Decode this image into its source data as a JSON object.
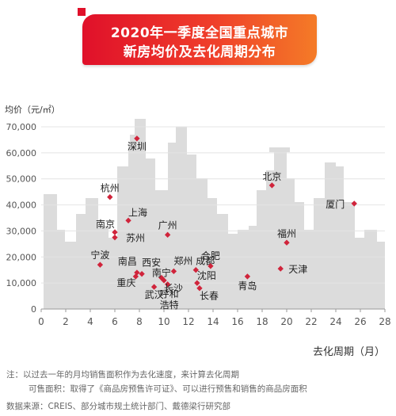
{
  "title": {
    "line1": "2020年一季度全国重点城市",
    "line2": "新房均价及去化周期分布"
  },
  "chart_data": {
    "type": "scatter",
    "ylabel": "均价（元/㎡）",
    "xlabel": "去化周期（月）",
    "xlim": [
      0,
      28
    ],
    "ylim": [
      0,
      70000
    ],
    "xticks": [
      "0",
      "2",
      "4",
      "6",
      "8",
      "10",
      "12",
      "14",
      "16",
      "18",
      "20",
      "22",
      "24",
      "26",
      "28"
    ],
    "yticks": [
      "0",
      "10,000",
      "20,000",
      "30,000",
      "40,000",
      "50,000",
      "60,000",
      "70,000"
    ],
    "grid": "horizontal",
    "marker_color": "#d0243b",
    "points": [
      {
        "label": "深圳",
        "x": 7.8,
        "y": 65500
      },
      {
        "label": "北京",
        "x": 18.8,
        "y": 47500
      },
      {
        "label": "厦门",
        "x": 25.5,
        "y": 40500
      },
      {
        "label": "杭州",
        "x": 5.6,
        "y": 43000
      },
      {
        "label": "上海",
        "x": 7.1,
        "y": 34000
      },
      {
        "label": "南京",
        "x": 6.0,
        "y": 29500
      },
      {
        "label": "苏州",
        "x": 6.0,
        "y": 27500
      },
      {
        "label": "广州",
        "x": 10.3,
        "y": 28500
      },
      {
        "label": "福州",
        "x": 20.0,
        "y": 25500
      },
      {
        "label": "宁波",
        "x": 4.8,
        "y": 17000
      },
      {
        "label": "南昌",
        "x": 7.8,
        "y": 14000
      },
      {
        "label": "西安",
        "x": 8.2,
        "y": 13500
      },
      {
        "label": "郑州",
        "x": 10.8,
        "y": 14500
      },
      {
        "label": "成都",
        "x": 12.6,
        "y": 15000
      },
      {
        "label": "合肥",
        "x": 13.8,
        "y": 16500
      },
      {
        "label": "天津",
        "x": 19.5,
        "y": 15500
      },
      {
        "label": "南宁",
        "x": 9.8,
        "y": 12000
      },
      {
        "label": "呼和浩特",
        "x": 10.3,
        "y": 9500
      },
      {
        "label": "重庆",
        "x": 7.7,
        "y": 12500
      },
      {
        "label": "武汉",
        "x": 9.2,
        "y": 8500
      },
      {
        "label": "长沙",
        "x": 10.0,
        "y": 11000
      },
      {
        "label": "沈阳",
        "x": 12.7,
        "y": 10000
      },
      {
        "label": "长春",
        "x": 12.9,
        "y": 8000
      },
      {
        "label": "青岛",
        "x": 16.8,
        "y": 12500
      }
    ]
  },
  "notes": {
    "line1": "注：以过去一年的月均销售面积作为去化速度，来计算去化周期",
    "line2": "可售面积：取得了《商品房预售许可证》、可以进行预售和销售的商品房面积",
    "line3": "数据来源：CREIS、部分城市规土统计部门、戴德梁行研究部"
  }
}
